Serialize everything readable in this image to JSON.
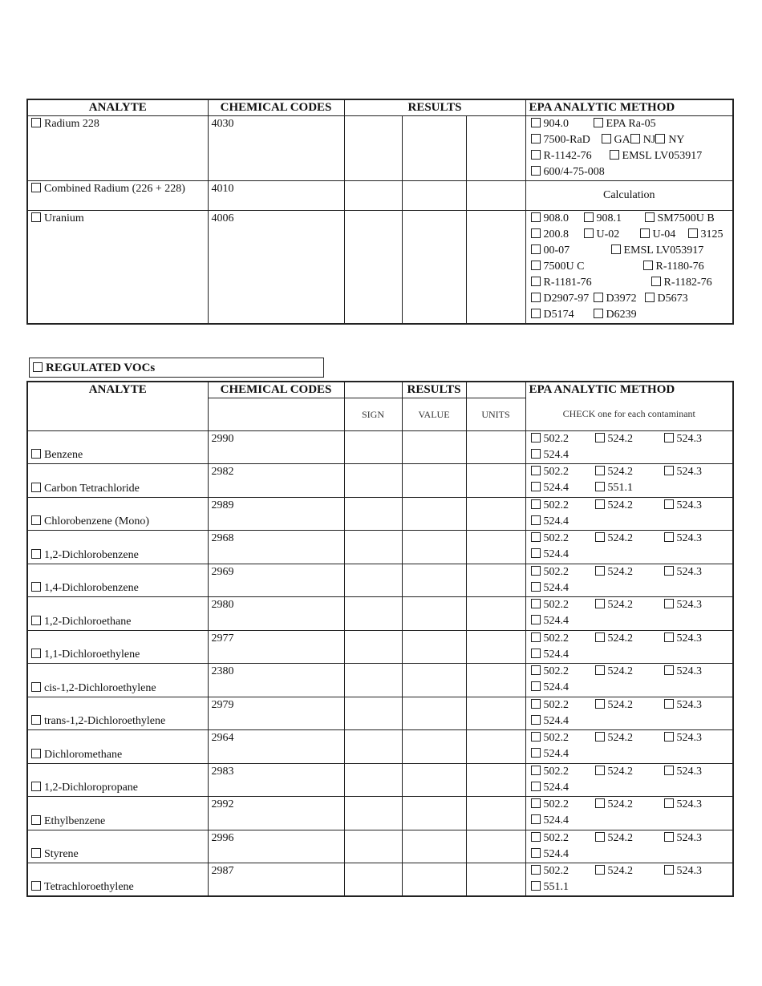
{
  "radiation_table": {
    "headers": {
      "analyte": "ANALYTE",
      "codes": "CHEMICAL CODES",
      "results": "RESULTS",
      "method": "EPA ANALYTIC METHOD"
    },
    "rows": [
      {
        "name": "Radium 228",
        "code": "4030",
        "methods": [
          [
            "904.0",
            "EPA Ra-05"
          ],
          [
            "7500-RaD",
            "GA",
            "NJ",
            "NY"
          ],
          [
            "R-1142-76",
            "EMSL LV053917"
          ],
          [
            "600/4-75-008"
          ]
        ]
      },
      {
        "name": "Combined Radium (226 + 228)",
        "code": "4010",
        "calculation": "Calculation"
      },
      {
        "name": "Uranium",
        "code": "4006",
        "methods": [
          [
            "908.0",
            "908.1",
            "SM7500U B"
          ],
          [
            "200.8",
            "U-02",
            "U-04",
            "3125"
          ],
          [
            "00-07",
            "EMSL LV053917"
          ],
          [
            "7500U C",
            "R-1180-76"
          ],
          [
            "R-1181-76",
            "R-1182-76"
          ],
          [
            "D2907-97",
            "D3972",
            "D5673"
          ],
          [
            "D5174",
            "D6239"
          ]
        ]
      }
    ]
  },
  "voc_section": {
    "title": "REGULATED VOCs",
    "headers": {
      "analyte": "ANALYTE",
      "codes": "CHEMICAL CODES",
      "results": "RESULTS",
      "method": "EPA ANALYTIC METHOD",
      "sign": "SIGN",
      "value": "VALUE",
      "units": "UNITS",
      "check_note": "CHECK one for each contaminant"
    },
    "rows": [
      {
        "name": "Benzene",
        "code": "2990",
        "methods": [
          [
            "502.2",
            "524.2",
            "524.3"
          ],
          [
            "524.4"
          ]
        ]
      },
      {
        "name": "Carbon Tetrachloride",
        "code": "2982",
        "methods": [
          [
            "502.2",
            "524.2",
            "524.3"
          ],
          [
            "524.4",
            "551.1"
          ]
        ]
      },
      {
        "name": "Chlorobenzene (Mono)",
        "code": "2989",
        "methods": [
          [
            "502.2",
            "524.2",
            "524.3"
          ],
          [
            "524.4"
          ]
        ]
      },
      {
        "name": "1,2-Dichlorobenzene",
        "code": "2968",
        "methods": [
          [
            "502.2",
            "524.2",
            "524.3"
          ],
          [
            "524.4"
          ]
        ]
      },
      {
        "name": "1,4-Dichlorobenzene",
        "code": "2969",
        "methods": [
          [
            "502.2",
            "524.2",
            "524.3"
          ],
          [
            "524.4"
          ]
        ]
      },
      {
        "name": "1,2-Dichloroethane",
        "code": "2980",
        "methods": [
          [
            "502.2",
            "524.2",
            "524.3"
          ],
          [
            "524.4"
          ]
        ]
      },
      {
        "name": "1,1-Dichloroethylene",
        "code": "2977",
        "methods": [
          [
            "502.2",
            "524.2",
            "524.3"
          ],
          [
            "524.4"
          ]
        ]
      },
      {
        "name": "cis-1,2-Dichloroethylene",
        "code": "2380",
        "methods": [
          [
            "502.2",
            "524.2",
            "524.3"
          ],
          [
            "524.4"
          ]
        ]
      },
      {
        "name": "trans-1,2-Dichloroethylene",
        "code": "2979",
        "methods": [
          [
            "502.2",
            "524.2",
            "524.3"
          ],
          [
            "524.4"
          ]
        ]
      },
      {
        "name": "Dichloromethane",
        "code": "2964",
        "methods": [
          [
            "502.2",
            "524.2",
            "524.3"
          ],
          [
            "524.4"
          ]
        ]
      },
      {
        "name": "1,2-Dichloropropane",
        "code": "2983",
        "methods": [
          [
            "502.2",
            "524.2",
            "524.3"
          ],
          [
            "524.4"
          ]
        ]
      },
      {
        "name": "Ethylbenzene",
        "code": "2992",
        "methods": [
          [
            "502.2",
            "524.2",
            "524.3"
          ],
          [
            "524.4"
          ]
        ]
      },
      {
        "name": "Styrene",
        "code": "2996",
        "methods": [
          [
            "502.2",
            "524.2",
            "524.3"
          ],
          [
            "524.4"
          ]
        ]
      },
      {
        "name": "Tetrachloroethylene",
        "code": "2987",
        "methods": [
          [
            "502.2",
            "524.2",
            "524.3"
          ],
          [
            "551.1"
          ]
        ]
      }
    ]
  }
}
